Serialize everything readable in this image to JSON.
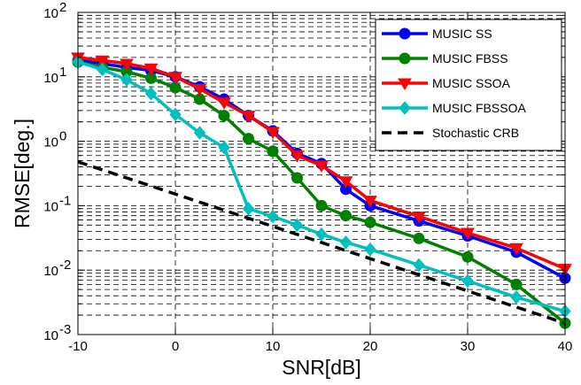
{
  "chart_data": {
    "type": "line",
    "xlabel": "SNR[dB]",
    "ylabel": "RMSE[deg.]",
    "xlim": [
      -10,
      40
    ],
    "ylim": [
      0.001,
      100
    ],
    "yscale": "log",
    "grid": true,
    "legend_position": "top-right",
    "x_ticks": [
      -10,
      0,
      10,
      20,
      30,
      40
    ],
    "x_tick_labels": [
      "-10",
      "0",
      "10",
      "20",
      "30",
      "40"
    ],
    "y_ticks": [
      0.001,
      0.01,
      0.1,
      1,
      10,
      100
    ],
    "y_tick_labels": [
      {
        "base": "10",
        "exp": "-3"
      },
      {
        "base": "10",
        "exp": "-2"
      },
      {
        "base": "10",
        "exp": "-1"
      },
      {
        "base": "10",
        "exp": "0"
      },
      {
        "base": "10",
        "exp": "1"
      },
      {
        "base": "10",
        "exp": "2"
      }
    ],
    "series": [
      {
        "name": "MUSIC SS",
        "color": "#0000ff",
        "marker": "circle",
        "line_style": "solid",
        "x": [
          -10,
          -7.5,
          -5,
          -2.5,
          0,
          2.5,
          5,
          7.5,
          10,
          12.5,
          15,
          17.5,
          20,
          25,
          30,
          35,
          40
        ],
        "y": [
          18,
          16,
          14,
          12.5,
          10,
          7,
          4.5,
          2.5,
          1.45,
          0.65,
          0.45,
          0.18,
          0.1,
          0.058,
          0.034,
          0.019,
          0.0075
        ]
      },
      {
        "name": "MUSIC FBSS",
        "color": "#008000",
        "marker": "circle",
        "line_style": "solid",
        "x": [
          -10,
          -7.5,
          -5,
          -2.5,
          0,
          2.5,
          5,
          7.5,
          10,
          12.5,
          15,
          17.5,
          20,
          25,
          30,
          35,
          40
        ],
        "y": [
          17,
          14,
          12,
          9.5,
          6.8,
          4.5,
          2.5,
          1.1,
          0.7,
          0.27,
          0.1,
          0.07,
          0.055,
          0.031,
          0.016,
          0.006,
          0.0015
        ]
      },
      {
        "name": "MUSIC SSOA",
        "color": "#ff0000",
        "marker": "triangle-down",
        "line_style": "solid",
        "x": [
          -10,
          -7.5,
          -5,
          -2.5,
          0,
          2.5,
          5,
          7.5,
          10,
          12.5,
          15,
          17.5,
          20,
          25,
          30,
          35,
          40
        ],
        "y": [
          20,
          18,
          16,
          13.5,
          10,
          6.5,
          4,
          2.5,
          1.4,
          0.6,
          0.42,
          0.24,
          0.12,
          0.068,
          0.038,
          0.022,
          0.0105
        ]
      },
      {
        "name": "MUSIC FBSSOA",
        "color": "#00bfbf",
        "marker": "diamond",
        "line_style": "solid",
        "x": [
          -10,
          -7.5,
          -5,
          -2.5,
          0,
          2.5,
          5,
          7.5,
          10,
          12.5,
          15,
          17.5,
          20,
          25,
          30,
          35,
          40
        ],
        "y": [
          17,
          13,
          9,
          5.5,
          2.6,
          1.35,
          0.8,
          0.09,
          0.068,
          0.05,
          0.036,
          0.027,
          0.021,
          0.012,
          0.0068,
          0.0038,
          0.0023
        ]
      },
      {
        "name": "Stochastic CRB",
        "color": "#000000",
        "marker": "none",
        "line_style": "dashed",
        "x": [
          -10,
          40
        ],
        "y": [
          0.48,
          0.0015
        ]
      }
    ]
  }
}
